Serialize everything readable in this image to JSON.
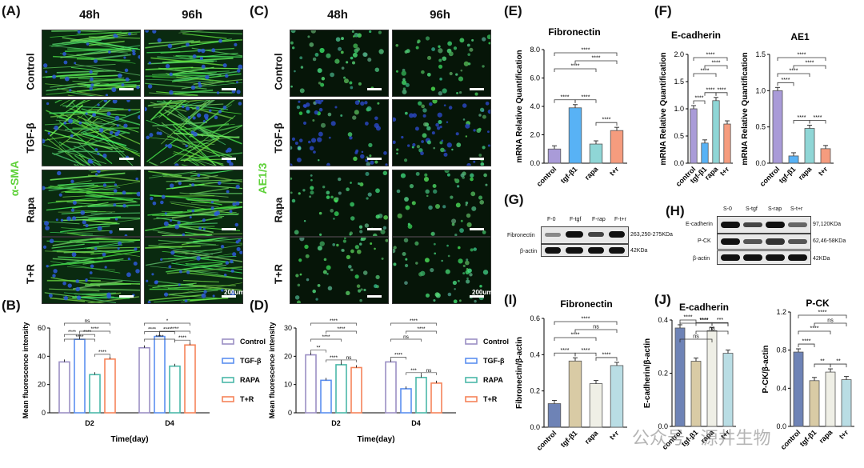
{
  "panelA": {
    "label": "(A)",
    "cols": [
      "48h",
      "96h"
    ],
    "rows": [
      "Control",
      "TGF-β",
      "Rapa",
      "T+R"
    ],
    "stain": "α-SMA",
    "scale": "200um"
  },
  "panelC": {
    "label": "(C)",
    "cols": [
      "48h",
      "96h"
    ],
    "rows": [
      "Control",
      "TGF-β",
      "Rapa",
      "T+R"
    ],
    "stain": "AE1/3",
    "scale": "200um"
  },
  "panelE": {
    "label": "(E)"
  },
  "panelF": {
    "label": "(F)"
  },
  "panelG": {
    "label": "(G)",
    "lanes": [
      "F-0",
      "F-tgf",
      "F-rap",
      "F-t+r"
    ],
    "rows": [
      "Fibronectin",
      "β-actin"
    ],
    "sizes": [
      "263,250-275KDa",
      "42KDa"
    ]
  },
  "panelH": {
    "label": "(H)",
    "lanes": [
      "S-0",
      "S-tgf",
      "S-rap",
      "S-t+r"
    ],
    "rows": [
      "E-cadherin",
      "P-CK",
      "β-actin"
    ],
    "sizes": [
      "97,120KDa",
      "62,46-58KDa",
      "42KDa"
    ]
  },
  "panelI": {
    "label": "(I)"
  },
  "panelJ": {
    "label": "(J)"
  },
  "watermark": "公众号 · 源井生物",
  "chart_data": [
    {
      "id": "B",
      "label": "(B)",
      "type": "bar",
      "categories": [
        "D2",
        "D4"
      ],
      "xlabel": "Time(day)",
      "ylabel": "Mean fluorescence intensity",
      "ylim": [
        0,
        60
      ],
      "yticks": [
        0,
        20,
        40,
        60
      ],
      "series": [
        {
          "name": "Control",
          "values": [
            36,
            46
          ],
          "color": "#9b8fc4"
        },
        {
          "name": "TGF-β",
          "values": [
            52,
            54
          ],
          "color": "#5b8ff0"
        },
        {
          "name": "RAPA",
          "values": [
            27,
            33
          ],
          "color": "#4bb8a8"
        },
        {
          "name": "T+R",
          "values": [
            38,
            48
          ],
          "color": "#f5845a"
        }
      ],
      "sig": [
        [
          "ns",
          "****",
          "****",
          "****",
          "****",
          "****"
        ],
        [
          "*",
          "****",
          "****",
          "****",
          "****",
          "****"
        ]
      ]
    },
    {
      "id": "D",
      "label": "(D)",
      "type": "bar",
      "categories": [
        "D2",
        "D4"
      ],
      "xlabel": "Time(day)",
      "ylabel": "Mean fluorescence intensity",
      "ylim": [
        0,
        30
      ],
      "yticks": [
        0,
        10,
        20,
        30
      ],
      "series": [
        {
          "name": "Control",
          "values": [
            20.5,
            18
          ],
          "color": "#9b8fc4"
        },
        {
          "name": "TGF-β",
          "values": [
            11.5,
            8.5
          ],
          "color": "#5b8ff0"
        },
        {
          "name": "RAPA",
          "values": [
            17,
            12.5
          ],
          "color": "#4bb8a8"
        },
        {
          "name": "T+R",
          "values": [
            16,
            10.5
          ],
          "color": "#f5845a"
        }
      ],
      "sig": [
        [
          "****",
          "****",
          "****",
          "**",
          "****",
          "ns"
        ],
        [
          "****",
          "****",
          "ns",
          "****",
          "***",
          "ns"
        ]
      ]
    },
    {
      "id": "E1",
      "title": "Fibronectin",
      "type": "bar",
      "categories": [
        "control",
        "tgf-β1",
        "rapa",
        "t+r"
      ],
      "values": [
        1.0,
        3.9,
        1.35,
        2.3
      ],
      "ylabel": "mRNA Relative Quantification",
      "ylim": [
        0,
        8
      ],
      "yticks": [
        "0.0",
        "2.0",
        "4.0",
        "6.0",
        "8.0"
      ],
      "colors": [
        "#a99bd8",
        "#58b2f5",
        "#8fd6d6",
        "#f59c7e"
      ],
      "sig": [
        "****",
        "****",
        "****",
        "****",
        "****",
        "****"
      ]
    },
    {
      "id": "F1",
      "title": "E-cadherin",
      "type": "bar",
      "categories": [
        "control",
        "tgf-β1",
        "rapa",
        "t+r"
      ],
      "values": [
        1.0,
        0.37,
        1.15,
        0.72
      ],
      "ylabel": "mRNA Relative Quantification",
      "ylim": [
        0,
        2
      ],
      "yticks": [
        "0.0",
        "0.5",
        "1.0",
        "1.5",
        "2.0"
      ],
      "colors": [
        "#a99bd8",
        "#58b2f5",
        "#8fd6d6",
        "#f59c7e"
      ],
      "sig": [
        "****",
        "****",
        "****",
        "****",
        "****",
        "****"
      ]
    },
    {
      "id": "F2",
      "title": "AE1",
      "type": "bar",
      "categories": [
        "control",
        "tgf-β1",
        "rapa",
        "t+r"
      ],
      "values": [
        1.0,
        0.1,
        0.48,
        0.2
      ],
      "ylabel": "mRNA Relative Quantification",
      "ylim": [
        0,
        1.5
      ],
      "yticks": [
        "0.0",
        "0.5",
        "1.0",
        "1.5"
      ],
      "colors": [
        "#a99bd8",
        "#58b2f5",
        "#8fd6d6",
        "#f59c7e"
      ],
      "sig": [
        "****",
        "****",
        "****",
        "****",
        "****",
        "****"
      ]
    },
    {
      "id": "I",
      "title": "Fibronectin",
      "type": "bar",
      "categories": [
        "control",
        "tgf-β1",
        "rapa",
        "t+r"
      ],
      "values": [
        0.13,
        0.365,
        0.24,
        0.34
      ],
      "ylabel": "Fibronectin/β-actin",
      "ylim": [
        0,
        0.6
      ],
      "yticks": [
        "0.0",
        "0.2",
        "0.4",
        "0.6"
      ],
      "colors": [
        "#6e83b6",
        "#d9cba5",
        "#efefe6",
        "#b9dde4"
      ],
      "sig": [
        "****",
        "ns",
        "****",
        "****",
        "****",
        "****"
      ]
    },
    {
      "id": "J1",
      "title": "E-cadherin",
      "type": "bar",
      "categories": [
        "control",
        "tgf-β1",
        "rapa",
        "t+r"
      ],
      "values": [
        0.37,
        0.245,
        0.36,
        0.275
      ],
      "ylabel": "E-cadherin/β-actin",
      "ylim": [
        0,
        0.4
      ],
      "yticks": [
        "0.0",
        "0.2",
        "0.4"
      ],
      "colors": [
        "#6e83b6",
        "#d9cba5",
        "#efefe6",
        "#b9dde4"
      ],
      "sig": [
        "****",
        "ns",
        "ns",
        "****",
        "****",
        "***"
      ]
    },
    {
      "id": "J2",
      "title": "P-CK",
      "type": "bar",
      "categories": [
        "control",
        "tgf-β1",
        "rapa",
        "t+r"
      ],
      "values": [
        0.78,
        0.48,
        0.57,
        0.49
      ],
      "ylabel": "P-CK/β-actin",
      "ylim": [
        0,
        1.2
      ],
      "yticks": [
        "0.0",
        "0.4",
        "0.8",
        "1.2"
      ],
      "colors": [
        "#6e83b6",
        "#d9cba5",
        "#efefe6",
        "#b9dde4"
      ],
      "sig": [
        "****",
        "ns",
        "****",
        "****",
        "**",
        "**"
      ]
    }
  ]
}
